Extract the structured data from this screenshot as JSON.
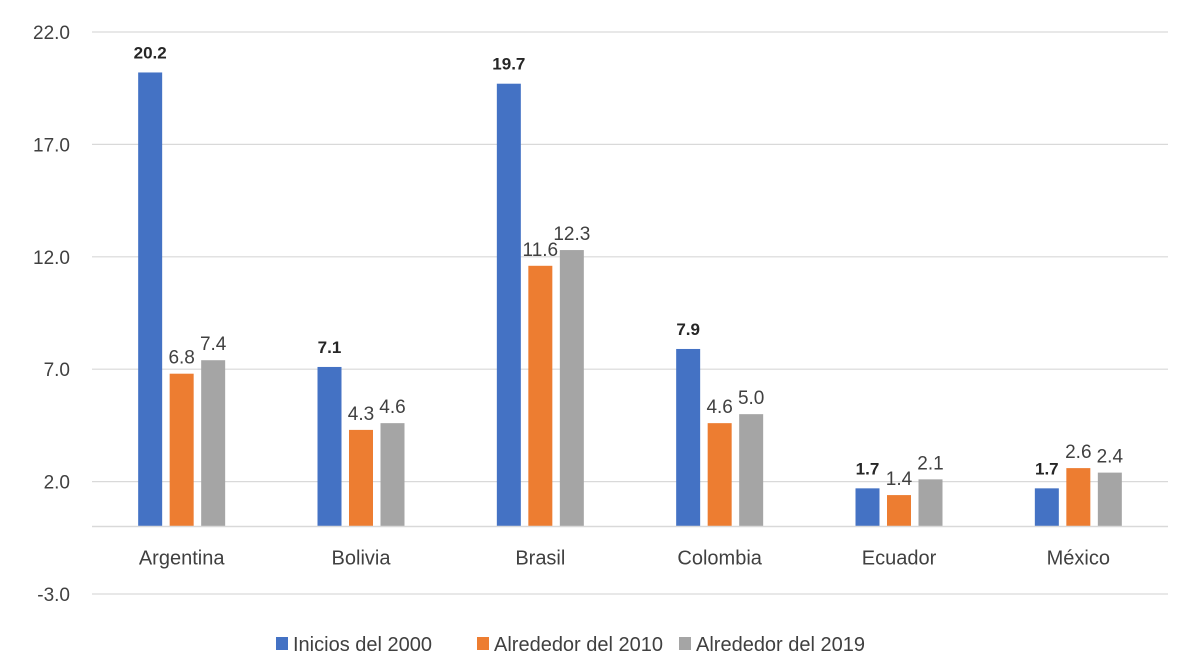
{
  "chart_data": {
    "type": "bar",
    "title": "",
    "xlabel": "",
    "ylabel": "",
    "categories": [
      "Argentina",
      "Bolivia",
      "Brasil",
      "Colombia",
      "Ecuador",
      "México"
    ],
    "series": [
      {
        "name": "Inicios del 2000",
        "color": "#4472C4",
        "values": [
          20.2,
          7.1,
          19.7,
          7.9,
          1.7,
          1.7
        ],
        "label_bold": true
      },
      {
        "name": "Alrededor del 2010",
        "color": "#ED7D31",
        "values": [
          6.8,
          4.3,
          11.6,
          4.6,
          1.4,
          2.6
        ],
        "label_bold": false
      },
      {
        "name": "Alrededor del 2019",
        "color": "#A5A5A5",
        "values": [
          7.4,
          4.6,
          12.3,
          5.0,
          2.1,
          2.4
        ],
        "label_bold": false
      }
    ],
    "ylim": [
      -3.0,
      22.0
    ],
    "yticks": [
      -3.0,
      2.0,
      7.0,
      12.0,
      17.0,
      22.0
    ],
    "ytick_labels": [
      "-3.0",
      "2.0",
      "7.0",
      "12.0",
      "17.0",
      "22.0"
    ],
    "grid": true,
    "legend_position": "bottom",
    "gridline_color": "#D9D9D9"
  }
}
